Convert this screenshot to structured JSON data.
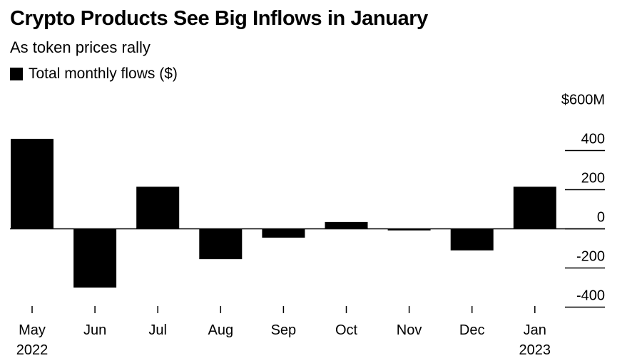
{
  "title": "Crypto Products See Big Inflows in January",
  "subtitle": "As token prices rally",
  "legend": {
    "label": "Total monthly flows ($)",
    "color": "#000000"
  },
  "chart_data": {
    "type": "bar",
    "title": "Crypto Products See Big Inflows in January",
    "subtitle": "As token prices rally",
    "categories": [
      "May",
      "Jun",
      "Jul",
      "Aug",
      "Sep",
      "Oct",
      "Nov",
      "Dec",
      "Jan"
    ],
    "category_sublabels": [
      "2022",
      "",
      "",
      "",
      "",
      "",
      "",
      "",
      "2023"
    ],
    "series": [
      {
        "name": "Total monthly flows ($)",
        "color": "#000000",
        "values": [
          460,
          -300,
          215,
          -155,
          -45,
          35,
          -8,
          -110,
          215
        ]
      }
    ],
    "y_ticks": [
      600,
      400,
      200,
      0,
      -200,
      -400
    ],
    "y_tick_labels": [
      "$600M",
      "400",
      "200",
      "0",
      "-200",
      "-400"
    ],
    "ylim": [
      -400,
      600
    ],
    "y_axis_position": "right",
    "grid": true,
    "legend_position": "top-left"
  }
}
